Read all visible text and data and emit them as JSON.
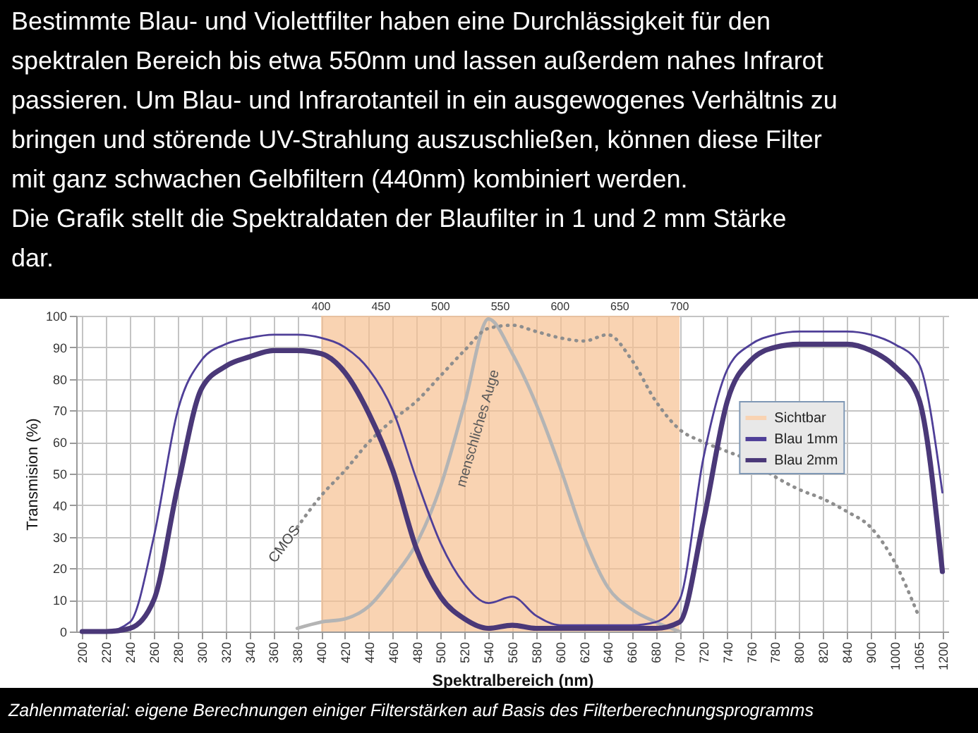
{
  "chart_data": {
    "type": "line",
    "title": "Bestimmte Blau- und Violettfilter haben eine Durchlässigkeit für den spektralen Bereich bis etwa 550nm und lassen außerdem nahes Infrarot passieren. Um Blau- und Infrarotanteil in ein ausgewogenes Verhältnis zu bringen und störende UV-Strahlung auszuschließen, können diese Filter mit ganz schwachen Gelbfiltern (440nm) kombiniert werden.",
    "subtitle": "Die Grafik stellt die Spektraldaten der Blaufilter in 1 und 2 mm Stärke dar.",
    "xlabel": "Spektralbereich (nm)",
    "ylabel": "Transmision (%)",
    "annotations": [
      {
        "text": "menschliches Auge",
        "x": "500",
        "y": 46
      },
      {
        "text": "CMOS",
        "x": "380",
        "y": 33
      },
      "Zahlenmaterial: eigene Berechnungen einiger Filterstärken auf Basis des Filterberechnungsprogramms"
    ],
    "categories": [
      "200",
      "220",
      "240",
      "260",
      "280",
      "300",
      "320",
      "340",
      "360",
      "380",
      "400",
      "420",
      "440",
      "460",
      "480",
      "500",
      "520",
      "540",
      "560",
      "580",
      "600",
      "620",
      "640",
      "660",
      "680",
      "700",
      "720",
      "740",
      "760",
      "780",
      "800",
      "820",
      "840",
      "900",
      "1000",
      "1065",
      "1200"
    ],
    "series": [
      {
        "name": "Sichtbar",
        "type": "area",
        "color": "#f9d3b2",
        "values": [
          null,
          null,
          null,
          null,
          null,
          null,
          null,
          null,
          null,
          null,
          100,
          100,
          100,
          100,
          100,
          100,
          100,
          100,
          100,
          100,
          100,
          100,
          100,
          100,
          100,
          100,
          null,
          null,
          null,
          null,
          null,
          null,
          null,
          null,
          null,
          null,
          null
        ]
      },
      {
        "color": "#b4b4b4",
        "values": [
          null,
          null,
          null,
          null,
          null,
          null,
          null,
          null,
          null,
          1,
          3,
          4,
          8,
          17,
          28,
          46,
          72,
          99,
          88,
          72,
          52,
          30,
          14,
          7,
          3,
          0,
          null,
          null,
          null,
          null,
          null,
          null,
          null,
          null,
          null,
          null,
          null
        ]
      },
      {
        "color": "#8e8e8e",
        "line_style": "dotted",
        "values": [
          null,
          null,
          null,
          null,
          null,
          null,
          null,
          null,
          null,
          33,
          43,
          51,
          60,
          67,
          73,
          81,
          89,
          96,
          97,
          95,
          93,
          92,
          94,
          86,
          73,
          64,
          60,
          57,
          54,
          49,
          45,
          42,
          38,
          33,
          22,
          5,
          null
        ]
      },
      {
        "name": "Blau 1mm",
        "color": "#4f3f98",
        "values": [
          0,
          0,
          3,
          30,
          70,
          86,
          91,
          93,
          94,
          94,
          93,
          90,
          83,
          70,
          48,
          28,
          15,
          9,
          11,
          5,
          2,
          2,
          2,
          2,
          3,
          10,
          55,
          83,
          91,
          94,
          95,
          95,
          95,
          94,
          91,
          85,
          44
        ]
      },
      {
        "name": "Blau 2mm",
        "color": "#4a3878",
        "values": [
          0,
          0,
          1,
          10,
          46,
          77,
          84,
          87,
          89,
          89,
          88,
          82,
          69,
          51,
          26,
          11,
          4,
          1,
          2,
          1,
          1,
          1,
          1,
          1,
          1,
          3,
          35,
          73,
          86,
          90,
          91,
          91,
          91,
          89,
          84,
          74,
          19
        ]
      }
    ],
    "ylim": [
      0,
      100
    ],
    "yticks": [
      0,
      10,
      20,
      30,
      40,
      50,
      60,
      70,
      80,
      90,
      100
    ],
    "x2lim": [
      195,
      925
    ],
    "x2ticks": [
      400,
      450,
      500,
      550,
      600,
      650,
      700
    ],
    "grid": true,
    "legend": "right"
  }
}
